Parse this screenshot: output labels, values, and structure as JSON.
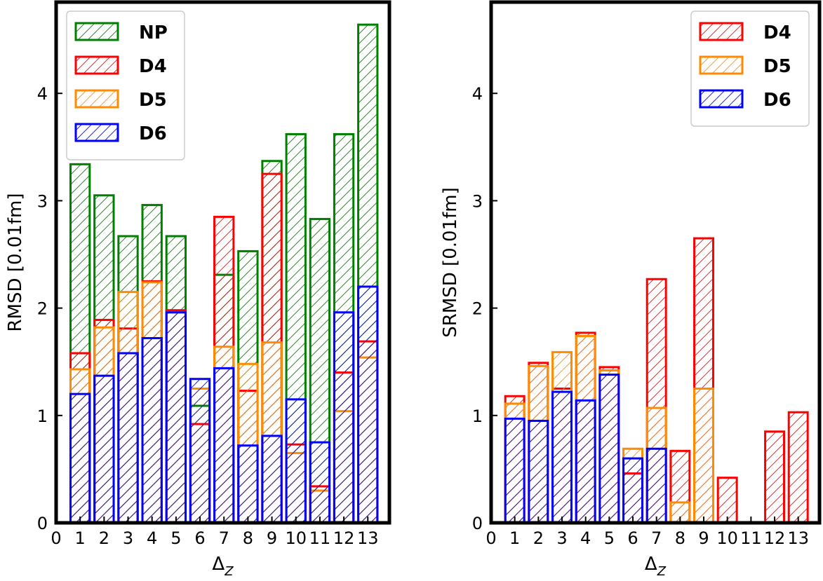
{
  "chart_data": [
    {
      "type": "bar",
      "ylabel": "RMSD [0.01fm]",
      "xlabel_base": "Δ",
      "xlabel_sub": "Z",
      "x_ticks": [
        "0",
        "1",
        "2",
        "3",
        "4",
        "5",
        "6",
        "7",
        "8",
        "9",
        "10",
        "11",
        "12",
        "13"
      ],
      "y_ticks": [
        "0",
        "1",
        "2",
        "3",
        "4"
      ],
      "xlim": [
        0,
        13.9
      ],
      "ylim": [
        0,
        4.85
      ],
      "legend_position": "top-left",
      "categories": [
        1,
        2,
        3,
        4,
        5,
        6,
        7,
        8,
        9,
        10,
        11,
        12,
        13
      ],
      "series": [
        {
          "name": "NP",
          "color": "#008000",
          "values": [
            3.34,
            3.05,
            2.67,
            2.96,
            2.67,
            1.09,
            2.31,
            2.53,
            3.37,
            3.62,
            2.83,
            3.62,
            4.64
          ]
        },
        {
          "name": "D4",
          "color": "#ff0000",
          "values": [
            1.58,
            1.89,
            1.81,
            2.25,
            1.98,
            0.92,
            2.85,
            1.23,
            3.25,
            0.73,
            0.34,
            1.4,
            1.69
          ]
        },
        {
          "name": "D5",
          "color": "#ff8c00",
          "values": [
            1.43,
            1.82,
            2.15,
            2.24,
            1.96,
            1.25,
            1.64,
            1.48,
            1.68,
            0.65,
            0.3,
            1.04,
            1.54
          ]
        },
        {
          "name": "D6",
          "color": "#0000ff",
          "values": [
            1.2,
            1.37,
            1.58,
            1.72,
            1.96,
            1.34,
            1.44,
            0.72,
            0.81,
            1.15,
            0.75,
            1.96,
            2.2
          ]
        }
      ]
    },
    {
      "type": "bar",
      "ylabel": "SRMSD [0.01fm]",
      "xlabel_base": "Δ",
      "xlabel_sub": "Z",
      "x_ticks": [
        "0",
        "1",
        "2",
        "3",
        "4",
        "5",
        "6",
        "7",
        "8",
        "9",
        "10",
        "11",
        "12",
        "13"
      ],
      "y_ticks": [
        "0",
        "1",
        "2",
        "3",
        "4"
      ],
      "xlim": [
        0,
        13.9
      ],
      "ylim": [
        0,
        4.85
      ],
      "legend_position": "top-right",
      "categories": [
        1,
        2,
        3,
        4,
        5,
        6,
        7,
        8,
        9,
        10,
        11,
        12,
        13
      ],
      "series": [
        {
          "name": "D4",
          "color": "#ff0000",
          "values": [
            1.18,
            1.49,
            1.25,
            1.77,
            1.45,
            0.46,
            2.27,
            0.67,
            2.65,
            0.42,
            0.0,
            0.85,
            1.03
          ]
        },
        {
          "name": "D5",
          "color": "#ff8c00",
          "values": [
            1.11,
            1.46,
            1.59,
            1.74,
            1.42,
            0.69,
            1.07,
            0.19,
            1.25,
            0.0,
            0.0,
            0.0,
            0.0
          ]
        },
        {
          "name": "D6",
          "color": "#0000ff",
          "values": [
            0.97,
            0.95,
            1.22,
            1.14,
            1.38,
            0.6,
            0.69,
            0.0,
            0.0,
            0.0,
            0.0,
            0.0,
            0.0
          ]
        }
      ]
    }
  ]
}
